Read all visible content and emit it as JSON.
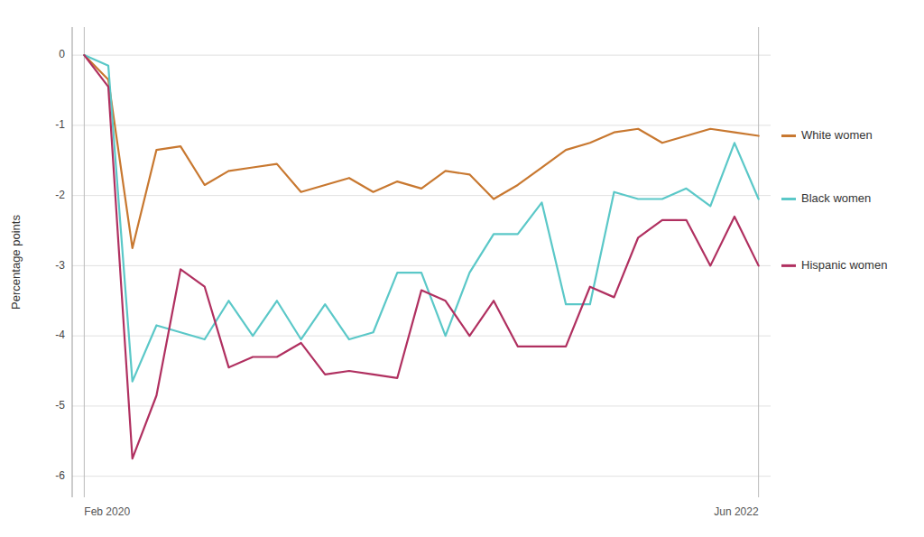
{
  "chart_data": {
    "type": "line",
    "y_label": "Percentage points",
    "categories": [
      "Feb 2020",
      null,
      null,
      null,
      null,
      null,
      null,
      null,
      null,
      null,
      null,
      null,
      null,
      null,
      null,
      null,
      null,
      null,
      null,
      null,
      null,
      null,
      null,
      null,
      null,
      null,
      null,
      null,
      "Jun 2022"
    ],
    "series": [
      {
        "name": "White women",
        "color": "#C87830",
        "values": [
          0,
          -0.35,
          -2.75,
          -1.35,
          -1.3,
          -1.85,
          -1.65,
          -1.6,
          -1.55,
          -1.95,
          -1.85,
          -1.75,
          -1.95,
          -1.8,
          -1.9,
          -1.65,
          -1.7,
          -2.05,
          -1.85,
          -1.6,
          -1.35,
          -1.25,
          -1.1,
          -1.05,
          -1.25,
          -1.15,
          -1.05,
          -1.1,
          -1.15
        ]
      },
      {
        "name": "Black women",
        "color": "#5BC8C8",
        "values": [
          0,
          -0.15,
          -4.65,
          -3.85,
          -3.95,
          -4.05,
          -3.5,
          -4.0,
          -3.5,
          -4.05,
          -3.55,
          -4.05,
          -3.95,
          -3.1,
          -3.1,
          -4.0,
          -3.1,
          -2.55,
          -2.55,
          -2.1,
          -3.55,
          -3.55,
          -1.95,
          -2.05,
          -2.05,
          -1.9,
          -2.15,
          -1.25,
          -2.05
        ]
      },
      {
        "name": "Hispanic women",
        "color": "#B03060",
        "values": [
          0,
          -0.45,
          -5.75,
          -4.85,
          -3.05,
          -3.3,
          -4.45,
          -4.3,
          -4.3,
          -4.1,
          -4.55,
          -4.5,
          -4.55,
          -4.6,
          -3.35,
          -3.5,
          -4.0,
          -3.5,
          -4.15,
          -4.15,
          -4.15,
          -3.3,
          -3.45,
          -2.6,
          -2.35,
          -2.35,
          -3.0,
          -2.3,
          -3.0
        ]
      }
    ],
    "ylim": [
      -6.3,
      0.4
    ],
    "yticks": [
      0,
      -1,
      -2,
      -3,
      -4,
      -5,
      -6
    ],
    "grid": true,
    "legend": "right",
    "tick_labels": "y"
  }
}
